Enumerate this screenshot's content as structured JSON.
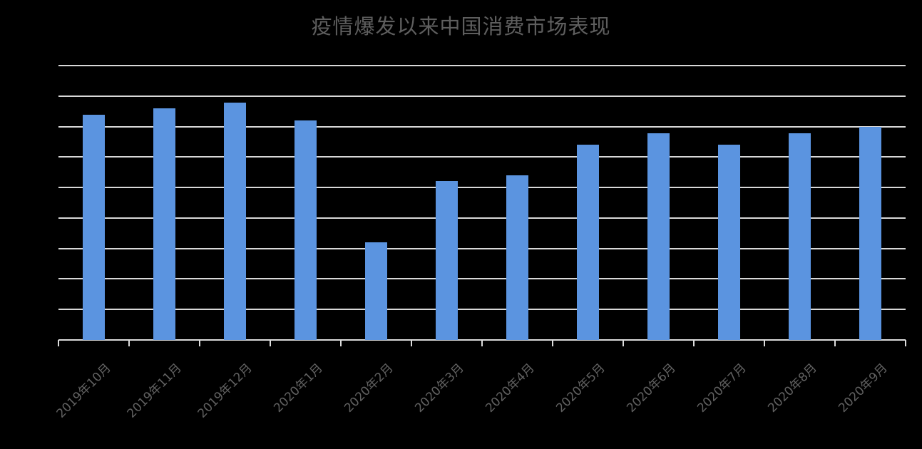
{
  "chart_data": {
    "type": "bar",
    "title": "疫情爆发以来中国消费市场表现",
    "categories": [
      "2019年10月",
      "2019年11月",
      "2019年12月",
      "2020年1月",
      "2020年2月",
      "2020年3月",
      "2020年4月",
      "2020年5月",
      "2020年6月",
      "2020年7月",
      "2020年8月",
      "2020年9月"
    ],
    "values": [
      36900,
      38000,
      38900,
      36000,
      16000,
      26100,
      27000,
      32000,
      33900,
      32000,
      33900,
      35000
    ],
    "xlabel": "",
    "ylabel": "",
    "ylim": [
      0,
      45000
    ],
    "y_gridline_step": 5000,
    "y_tick_labels_visible": false,
    "x_tick_labels_rotation_deg": -45,
    "grid": true,
    "legend": false,
    "colors": {
      "bar": "#5B94E0",
      "gridline": "#D8D8D8",
      "axis": "#DCDCDC",
      "title_text": "#5E5E5E",
      "axis_label_text": "#616161",
      "background": "#000000"
    }
  }
}
